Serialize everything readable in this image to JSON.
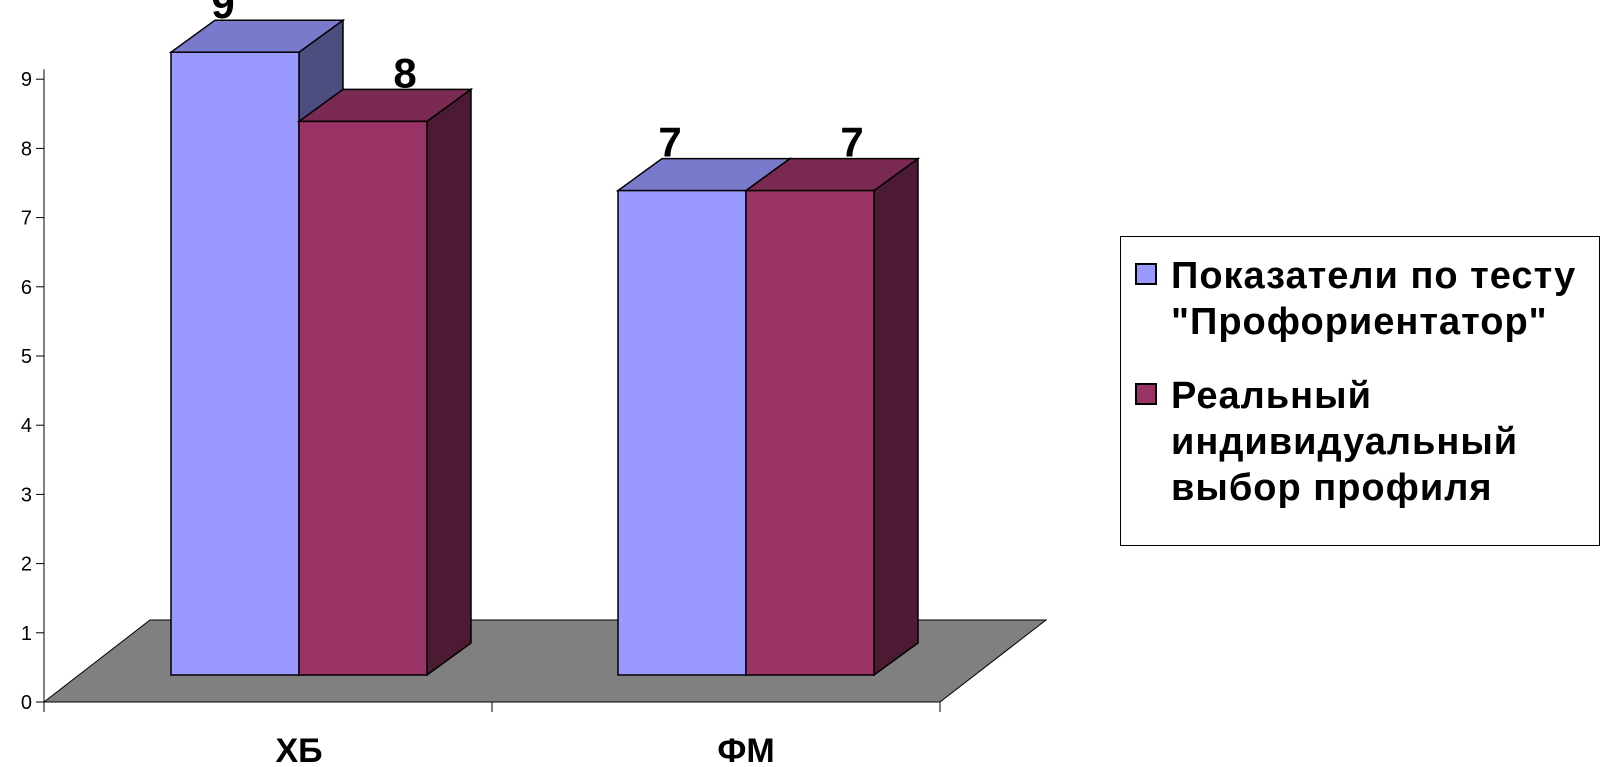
{
  "chart_data": {
    "type": "bar",
    "categories": [
      "ХБ",
      "ФМ"
    ],
    "series": [
      {
        "name": "Показатели по тесту \"Профориентатор\"",
        "values": [
          9,
          7
        ],
        "color": "#9999FF"
      },
      {
        "name": "Реальный индивидуальный выбор профиля",
        "values": [
          8,
          7
        ],
        "color": "#993366"
      }
    ],
    "yticks": [
      "0",
      "1",
      "2",
      "3",
      "4",
      "5",
      "6",
      "7",
      "8",
      "9"
    ],
    "ylim": [
      0,
      9
    ],
    "data_labels": [
      [
        "9",
        "7"
      ],
      [
        "8",
        "7"
      ]
    ],
    "legend_placement": "right",
    "floor_color": "#808080"
  }
}
